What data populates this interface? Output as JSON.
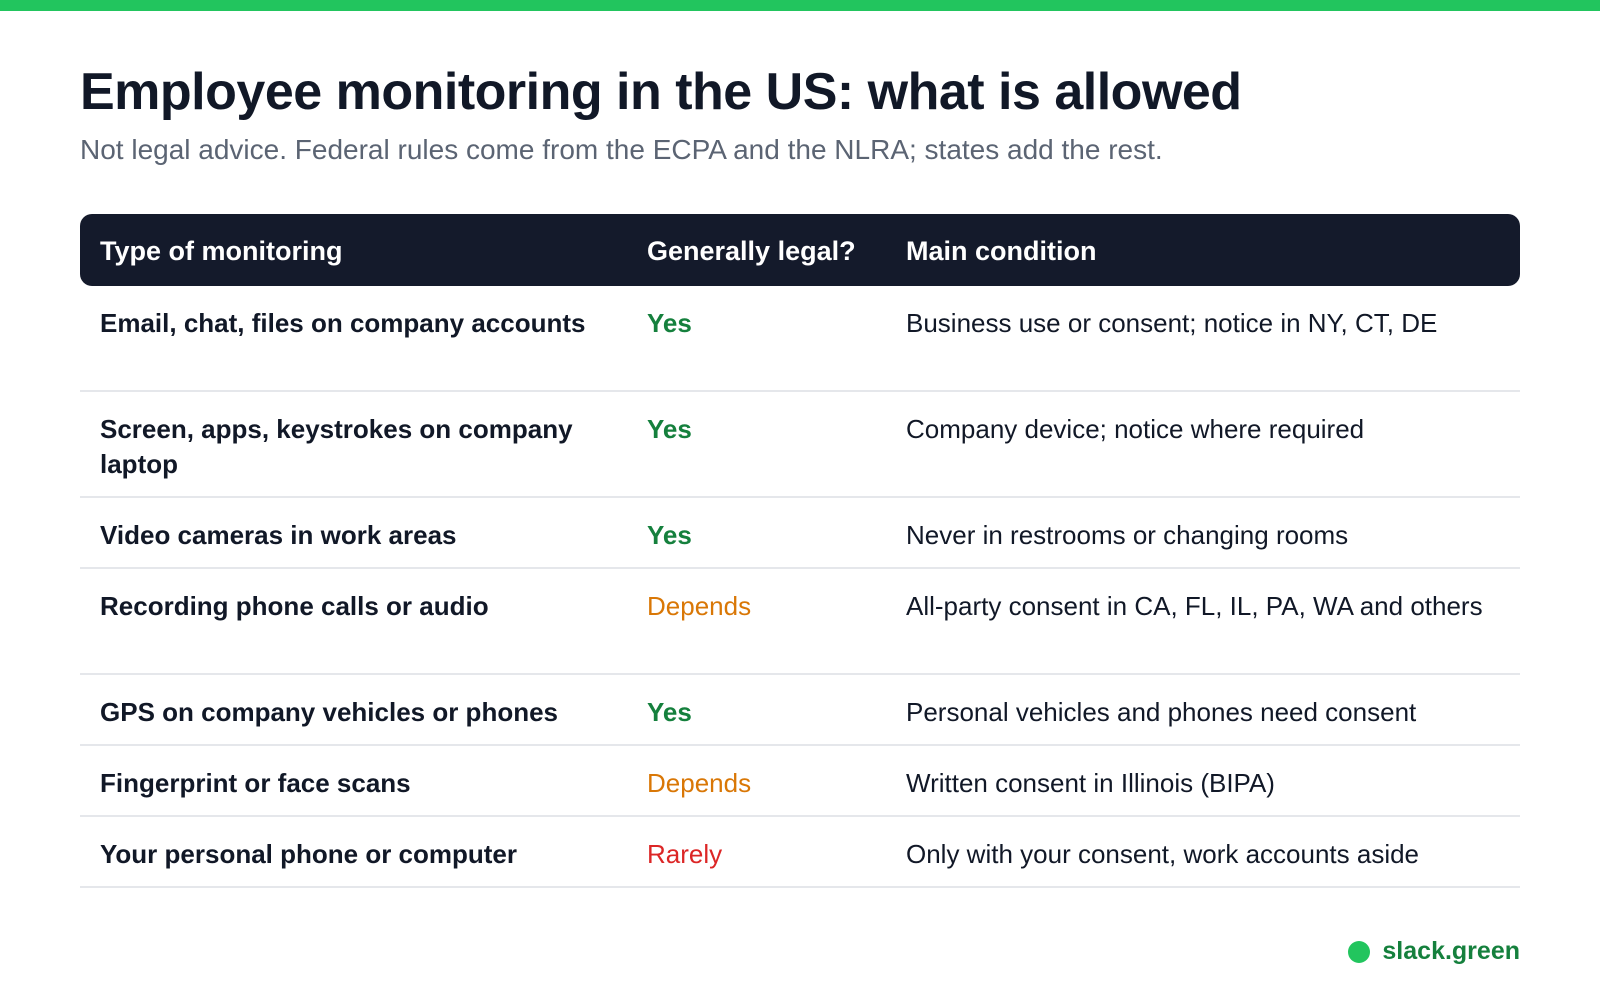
{
  "title": "Employee monitoring in the US: what is allowed",
  "subtitle": "Not legal advice. Federal rules come from the ECPA and the NLRA; states add the rest.",
  "colors": {
    "accent": "#22c55e",
    "header_bg": "#141a2b",
    "yes": "#15803d",
    "depends": "#d97706",
    "rarely": "#dc2626"
  },
  "table": {
    "headers": [
      "Type of monitoring",
      "Generally legal?",
      "Main condition"
    ],
    "rows": [
      {
        "type": "Email, chat, files on company accounts",
        "legal": "Yes",
        "status": "yes",
        "condition": "Business use or consent; notice in NY, CT, DE"
      },
      {
        "type": "Screen, apps, keystrokes on company laptop",
        "legal": "Yes",
        "status": "yes",
        "condition": "Company device; notice where required"
      },
      {
        "type": "Video cameras in work areas",
        "legal": "Yes",
        "status": "yes",
        "condition": "Never in restrooms or changing rooms"
      },
      {
        "type": "Recording phone calls or audio",
        "legal": "Depends",
        "status": "depends",
        "condition": "All-party consent in CA, FL, IL, PA, WA and others"
      },
      {
        "type": "GPS on company vehicles or phones",
        "legal": "Yes",
        "status": "yes",
        "condition": "Personal vehicles and phones need consent"
      },
      {
        "type": "Fingerprint or face scans",
        "legal": "Depends",
        "status": "depends",
        "condition": "Written consent in Illinois (BIPA)"
      },
      {
        "type": "Your personal phone or computer",
        "legal": "Rarely",
        "status": "rarely",
        "condition": "Only with your consent, work accounts aside"
      }
    ]
  },
  "footer": {
    "brand": "slack.green",
    "icon": "green-dot-icon"
  }
}
